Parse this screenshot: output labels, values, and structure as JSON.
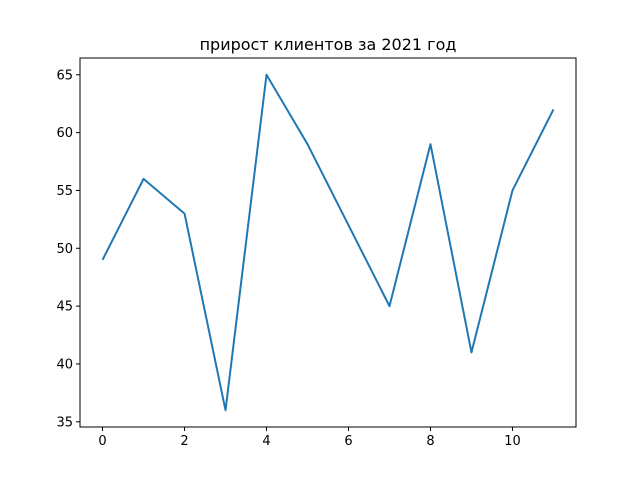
{
  "chart_data": {
    "type": "line",
    "title": "прирост клиентов за 2021 год",
    "xlabel": "",
    "ylabel": "",
    "x": [
      0,
      1,
      2,
      3,
      4,
      5,
      6,
      7,
      8,
      9,
      10,
      11
    ],
    "series": [
      {
        "values": [
          49,
          56,
          53,
          36,
          65,
          59,
          52,
          45,
          59,
          41,
          55,
          62
        ]
      }
    ],
    "xlim": [
      -0.55,
      11.55
    ],
    "ylim": [
      34.55,
      66.45
    ],
    "xticks": [
      "0",
      "2",
      "4",
      "6",
      "8",
      "10"
    ],
    "yticks": [
      "35",
      "40",
      "45",
      "50",
      "55",
      "60",
      "65"
    ],
    "grid": false,
    "line_color": "#1f77b4"
  }
}
